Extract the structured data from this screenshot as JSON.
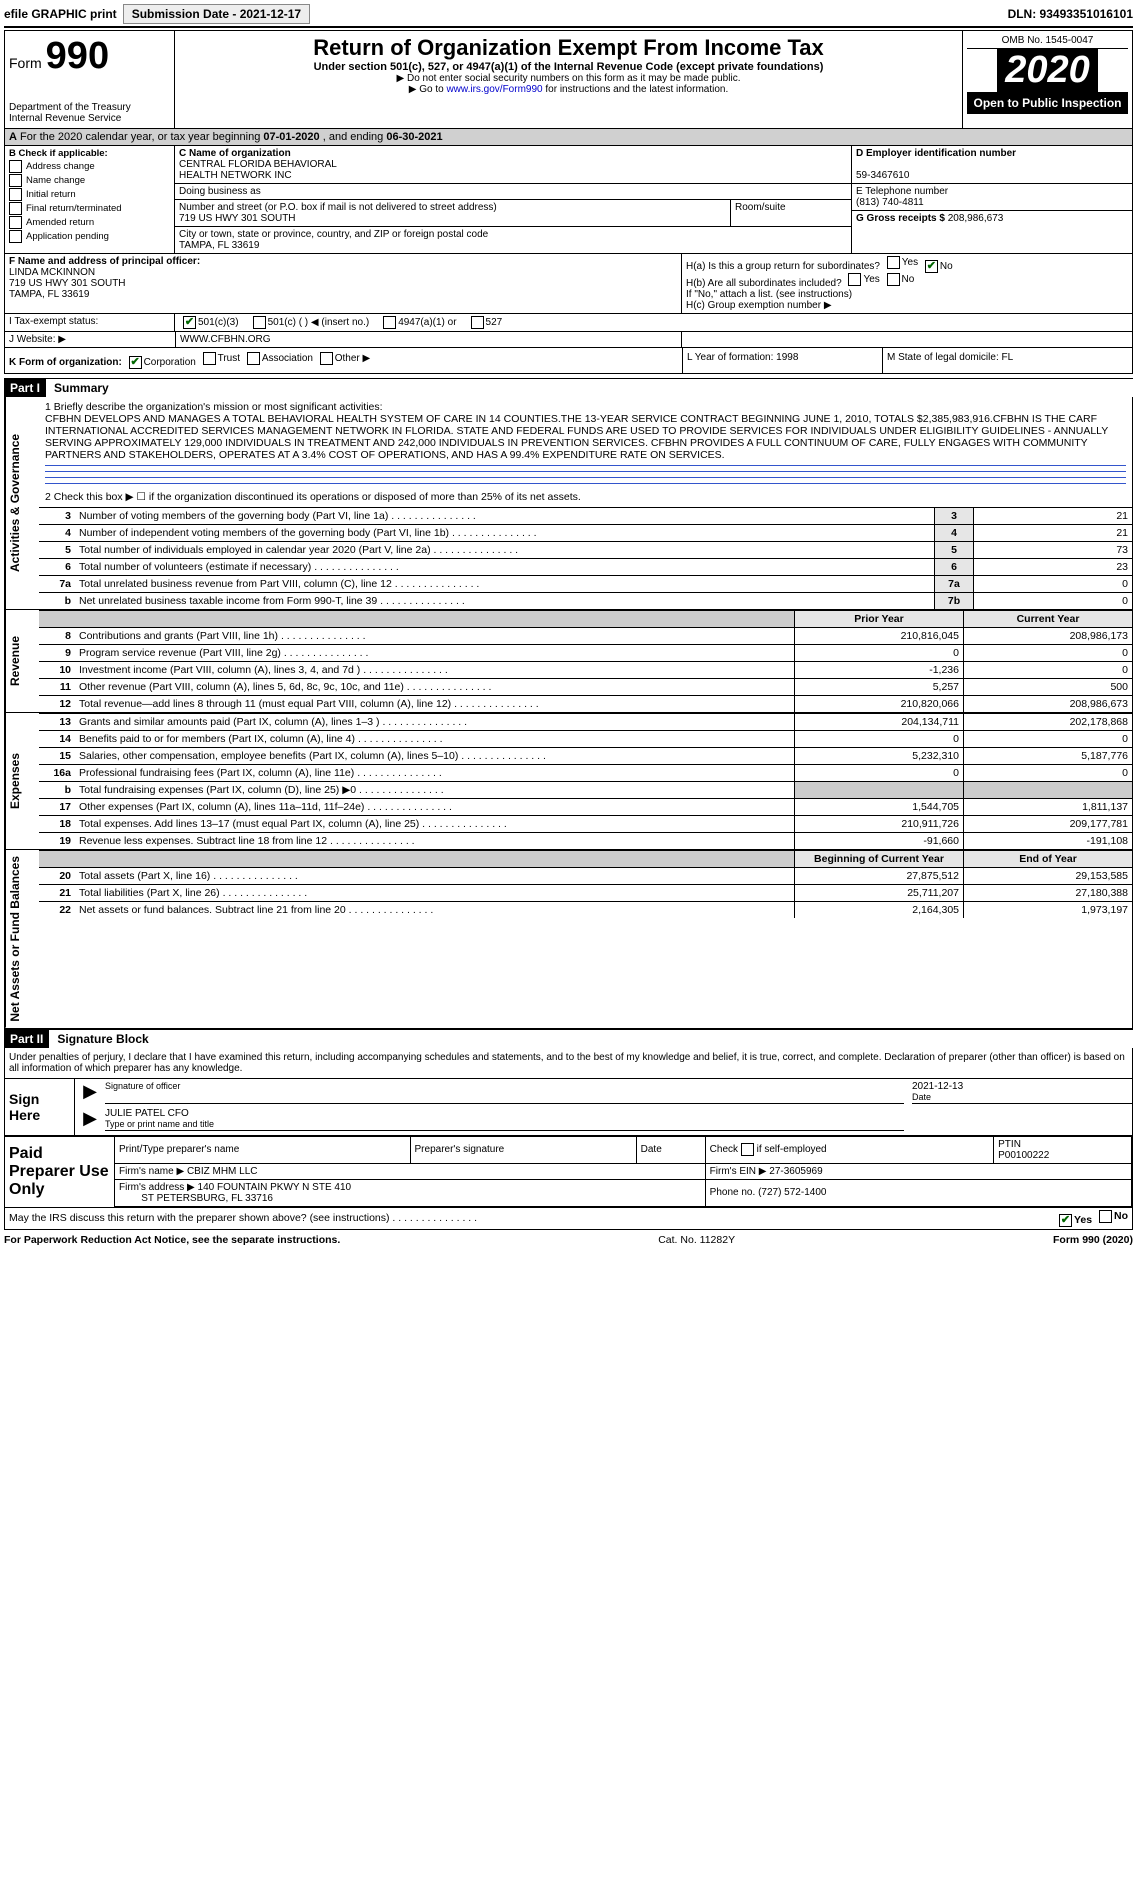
{
  "topbar": {
    "efile": "efile GRAPHIC print",
    "sub_label": "Submission Date - 2021-12-17",
    "dln_label": "DLN: 93493351016101"
  },
  "header": {
    "form_word": "Form",
    "form_num": "990",
    "title": "Return of Organization Exempt From Income Tax",
    "subtitle": "Under section 501(c), 527, or 4947(a)(1) of the Internal Revenue Code (except private foundations)",
    "note1": "▶ Do not enter social security numbers on this form as it may be made public.",
    "note2a": "▶ Go to ",
    "note2_link": "www.irs.gov/Form990",
    "note2b": " for instructions and the latest information.",
    "dept1": "Department of the Treasury",
    "dept2": "Internal Revenue Service",
    "omb": "OMB No. 1545-0047",
    "year": "2020",
    "open_public": "Open to Public Inspection"
  },
  "period": {
    "prefix_a": "A",
    "prefix_rest": " For the 2020 calendar year, or tax year beginning ",
    "begin": "07-01-2020",
    "mid": " , and ending ",
    "end": "06-30-2021"
  },
  "blockB": {
    "head": "B Check if applicable:",
    "items": [
      "Address change",
      "Name change",
      "Initial return",
      "Final return/terminated",
      "Amended return",
      "Application pending"
    ]
  },
  "blockC": {
    "c_label": "C Name of organization",
    "org1": "CENTRAL FLORIDA BEHAVIORAL",
    "org2": "HEALTH NETWORK INC",
    "dba_label": "Doing business as",
    "street_label": "Number and street (or P.O. box if mail is not delivered to street address)",
    "street": "719 US HWY 301 SOUTH",
    "room_label": "Room/suite",
    "city_label": "City or town, state or province, country, and ZIP or foreign postal code",
    "city": "TAMPA, FL  33619"
  },
  "blockDE": {
    "d_label": "D Employer identification number",
    "ein": "59-3467610",
    "e_label": "E Telephone number",
    "phone": "(813) 740-4811",
    "g_label": "G Gross receipts $",
    "gross": "208,986,673"
  },
  "rowF": {
    "f_label": "F  Name and address of principal officer:",
    "name": "LINDA MCKINNON",
    "addr1": "719 US HWY 301 SOUTH",
    "addr2": "TAMPA, FL  33619",
    "ha": "H(a)  Is this a group return for subordinates?",
    "hb": "H(b)  Are all subordinates included?",
    "hb_note": "If \"No,\" attach a list. (see instructions)",
    "hc": "H(c)  Group exemption number ▶",
    "yes": "Yes",
    "no": "No"
  },
  "rowI": {
    "label": "I  Tax-exempt status:",
    "c3": "501(c)(3)",
    "c": "501(c) (   ) ◀ (insert no.)",
    "a1": "4947(a)(1) or",
    "s527": "527"
  },
  "rowJ": {
    "label": "J  Website: ▶",
    "url": "WWW.CFBHN.ORG"
  },
  "rowK": {
    "label": "K Form of organization:",
    "corp": "Corporation",
    "trust": "Trust",
    "assoc": "Association",
    "other": "Other ▶",
    "l": "L Year of formation: 1998",
    "m": "M State of legal domicile: FL"
  },
  "part1": {
    "badge": "Part I",
    "title": "Summary"
  },
  "mission": {
    "lead": "1   Briefly describe the organization's mission or most significant activities:",
    "text": "CFBHN DEVELOPS AND MANAGES A TOTAL BEHAVIORAL HEALTH SYSTEM OF CARE IN 14 COUNTIES.THE 13-YEAR SERVICE CONTRACT BEGINNING JUNE 1, 2010, TOTALS $2,385,983,916.CFBHN IS THE CARF INTERNATIONAL ACCREDITED SERVICES MANAGEMENT NETWORK IN FLORIDA. STATE AND FEDERAL FUNDS ARE USED TO PROVIDE SERVICES FOR INDIVIDUALS UNDER ELIGIBILITY GUIDELINES - ANNUALLY SERVING APPROXIMATELY 129,000 INDIVIDUALS IN TREATMENT AND 242,000 INDIVIDUALS IN PREVENTION SERVICES. CFBHN PROVIDES A FULL CONTINUUM OF CARE, FULLY ENGAGES WITH COMMUNITY PARTNERS AND STAKEHOLDERS, OPERATES AT A 3.4% COST OF OPERATIONS, AND HAS A 99.4% EXPENDITURE RATE ON SERVICES.",
    "line2": "2   Check this box ▶ ☐  if the organization discontinued its operations or disposed of more than 25% of its net assets."
  },
  "governance": {
    "rows": [
      {
        "n": "3",
        "d": "Number of voting members of the governing body (Part VI, line 1a)",
        "k": "3",
        "v": "21"
      },
      {
        "n": "4",
        "d": "Number of independent voting members of the governing body (Part VI, line 1b)",
        "k": "4",
        "v": "21"
      },
      {
        "n": "5",
        "d": "Total number of individuals employed in calendar year 2020 (Part V, line 2a)",
        "k": "5",
        "v": "73"
      },
      {
        "n": "6",
        "d": "Total number of volunteers (estimate if necessary)",
        "k": "6",
        "v": "23"
      },
      {
        "n": "7a",
        "d": "Total unrelated business revenue from Part VIII, column (C), line 12",
        "k": "7a",
        "v": "0"
      },
      {
        "n": "b",
        "d": "Net unrelated business taxable income from Form 990-T, line 39",
        "k": "7b",
        "v": "0"
      }
    ]
  },
  "yr_headers": {
    "prior": "Prior Year",
    "current": "Current Year"
  },
  "revenue": {
    "label": "Revenue",
    "rows": [
      {
        "n": "8",
        "d": "Contributions and grants (Part VIII, line 1h)",
        "p": "210,816,045",
        "c": "208,986,173"
      },
      {
        "n": "9",
        "d": "Program service revenue (Part VIII, line 2g)",
        "p": "0",
        "c": "0"
      },
      {
        "n": "10",
        "d": "Investment income (Part VIII, column (A), lines 3, 4, and 7d )",
        "p": "-1,236",
        "c": "0"
      },
      {
        "n": "11",
        "d": "Other revenue (Part VIII, column (A), lines 5, 6d, 8c, 9c, 10c, and 11e)",
        "p": "5,257",
        "c": "500"
      },
      {
        "n": "12",
        "d": "Total revenue—add lines 8 through 11 (must equal Part VIII, column (A), line 12)",
        "p": "210,820,066",
        "c": "208,986,673"
      }
    ]
  },
  "expenses": {
    "label": "Expenses",
    "rows": [
      {
        "n": "13",
        "d": "Grants and similar amounts paid (Part IX, column (A), lines 1–3 )",
        "p": "204,134,711",
        "c": "202,178,868"
      },
      {
        "n": "14",
        "d": "Benefits paid to or for members (Part IX, column (A), line 4)",
        "p": "0",
        "c": "0"
      },
      {
        "n": "15",
        "d": "Salaries, other compensation, employee benefits (Part IX, column (A), lines 5–10)",
        "p": "5,232,310",
        "c": "5,187,776"
      },
      {
        "n": "16a",
        "d": "Professional fundraising fees (Part IX, column (A), line 11e)",
        "p": "0",
        "c": "0"
      },
      {
        "n": "b",
        "d": "Total fundraising expenses (Part IX, column (D), line 25) ▶0",
        "p": "",
        "c": "",
        "shade": true
      },
      {
        "n": "17",
        "d": "Other expenses (Part IX, column (A), lines 11a–11d, 11f–24e)",
        "p": "1,544,705",
        "c": "1,811,137"
      },
      {
        "n": "18",
        "d": "Total expenses. Add lines 13–17 (must equal Part IX, column (A), line 25)",
        "p": "210,911,726",
        "c": "209,177,781"
      },
      {
        "n": "19",
        "d": "Revenue less expenses. Subtract line 18 from line 12",
        "p": "-91,660",
        "c": "-191,108"
      }
    ]
  },
  "netassets": {
    "label": "Net Assets or Fund Balances",
    "h1": "Beginning of Current Year",
    "h2": "End of Year",
    "rows": [
      {
        "n": "20",
        "d": "Total assets (Part X, line 16)",
        "p": "27,875,512",
        "c": "29,153,585"
      },
      {
        "n": "21",
        "d": "Total liabilities (Part X, line 26)",
        "p": "25,711,207",
        "c": "27,180,388"
      },
      {
        "n": "22",
        "d": "Net assets or fund balances. Subtract line 21 from line 20",
        "p": "2,164,305",
        "c": "1,973,197"
      }
    ]
  },
  "part2": {
    "badge": "Part II",
    "title": "Signature Block"
  },
  "sig": {
    "penalty": "Under penalties of perjury, I declare that I have examined this return, including accompanying schedules and statements, and to the best of my knowledge and belief, it is true, correct, and complete. Declaration of preparer (other than officer) is based on all information of which preparer has any knowledge.",
    "sign_here": "Sign Here",
    "sig_of_officer": "Signature of officer",
    "date_label": "Date",
    "date": "2021-12-13",
    "officer": "JULIE PATEL CFO",
    "type_name": "Type or print name and title"
  },
  "paid": {
    "label": "Paid Preparer Use Only",
    "h1": "Print/Type preparer's name",
    "h2": "Preparer's signature",
    "h3": "Date",
    "h4a": "Check",
    "h4b": "if self-employed",
    "h5": "PTIN",
    "ptin": "P00100222",
    "firm_name_l": "Firm's name   ▶",
    "firm_name": "CBIZ MHM LLC",
    "firm_ein_l": "Firm's EIN ▶",
    "firm_ein": "27-3605969",
    "firm_addr_l": "Firm's address ▶",
    "firm_addr1": "140 FOUNTAIN PKWY N STE 410",
    "firm_addr2": "ST PETERSBURG, FL  33716",
    "phone_l": "Phone no.",
    "phone": "(727) 572-1400"
  },
  "discuss": {
    "text": "May the IRS discuss this return with the preparer shown above? (see instructions)",
    "yes": "Yes",
    "no": "No"
  },
  "footer": {
    "left": "For Paperwork Reduction Act Notice, see the separate instructions.",
    "mid": "Cat. No. 11282Y",
    "right": "Form 990 (2020)"
  }
}
